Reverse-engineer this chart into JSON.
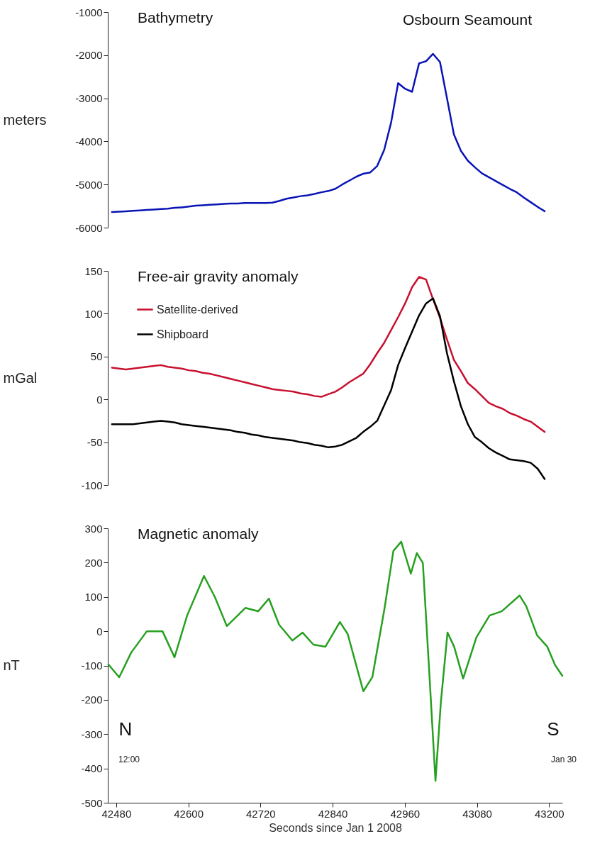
{
  "chart_data": [
    {
      "type": "line",
      "title": "Bathymetry",
      "ylabel": "meters",
      "annotations": [
        "Osbourn Seamount"
      ],
      "ylim": [
        -6000,
        -1000
      ],
      "yticks": [
        -6000,
        -5000,
        -4000,
        -3000,
        -2000,
        -1000
      ],
      "tick_labels": "y",
      "grid": false,
      "line_style": "solid",
      "categories": [
        null,
        null,
        null,
        null,
        null,
        null,
        null,
        null,
        null,
        null,
        null,
        null,
        null,
        null,
        null,
        null,
        null,
        null,
        null,
        null,
        null,
        null,
        null,
        null,
        null,
        null,
        null,
        null,
        null,
        null,
        null,
        null,
        null,
        null,
        null,
        null,
        null,
        null,
        null,
        null,
        null,
        null,
        null,
        null,
        null,
        null,
        null,
        null,
        null,
        null,
        null,
        null,
        null,
        null,
        null,
        null,
        null,
        null,
        null,
        null,
        null,
        null,
        null
      ],
      "series": [
        {
          "color": "#0a14b4",
          "values": [
            -5640,
            -5630,
            -5620,
            -5610,
            -5600,
            -5590,
            -5580,
            -5570,
            -5560,
            -5540,
            -5530,
            -5510,
            -5490,
            -5480,
            -5470,
            -5460,
            -5450,
            -5440,
            -5440,
            -5430,
            -5430,
            -5430,
            -5430,
            -5420,
            -5380,
            -5330,
            -5300,
            -5270,
            -5250,
            -5220,
            -5180,
            -5150,
            -5100,
            -5000,
            -4910,
            -4820,
            -4750,
            -4720,
            -4570,
            -4200,
            -3560,
            -2650,
            -2780,
            -2850,
            -2190,
            -2140,
            -1970,
            -2160,
            -3000,
            -3840,
            -4220,
            -4450,
            -4600,
            -4740,
            -4830,
            -4920,
            -5010,
            -5100,
            -5180,
            -5300,
            -5410,
            -5520,
            -5620
          ]
        }
      ]
    },
    {
      "type": "line",
      "title": "Free-air gravity anomaly",
      "ylabel": "mGal",
      "ylim": [
        -100,
        150
      ],
      "yticks": [
        -100,
        -50,
        0,
        50,
        100,
        150
      ],
      "tick_labels": "y",
      "grid": false,
      "legend": "top left",
      "line_style": "solid",
      "categories": [
        null,
        null,
        null,
        null,
        null,
        null,
        null,
        null,
        null,
        null,
        null,
        null,
        null,
        null,
        null,
        null,
        null,
        null,
        null,
        null,
        null,
        null,
        null,
        null,
        null,
        null,
        null,
        null,
        null,
        null,
        null,
        null,
        null,
        null,
        null,
        null,
        null,
        null,
        null,
        null,
        null,
        null,
        null,
        null,
        null,
        null,
        null,
        null,
        null,
        null,
        null,
        null,
        null,
        null,
        null,
        null,
        null,
        null,
        null,
        null,
        null,
        null,
        null
      ],
      "series": [
        {
          "name": "Satellite-derived",
          "color": "#c8102e",
          "values": [
            37,
            36,
            35,
            36,
            37,
            38,
            39,
            40,
            38,
            37,
            36,
            34,
            33,
            31,
            30,
            28,
            26,
            24,
            22,
            20,
            18,
            16,
            14,
            12,
            11,
            10,
            9,
            7,
            6,
            4,
            3,
            6,
            9,
            14,
            20,
            25,
            30,
            41,
            54,
            66,
            81,
            96,
            112,
            131,
            143,
            140,
            117,
            95,
            70,
            46,
            33,
            19,
            12,
            4,
            -4,
            -8,
            -11,
            -16,
            -19,
            -23,
            -26,
            -32,
            -38
          ]
        },
        {
          "name": "Shipboard",
          "color": "#000000",
          "values": [
            -29,
            -29,
            -29,
            -29,
            -28,
            -27,
            -26,
            -25,
            -26,
            -27,
            -29,
            -30,
            -31,
            -32,
            -33,
            -34,
            -35,
            -36,
            -38,
            -39,
            -41,
            -42,
            -44,
            -45,
            -46,
            -47,
            -48,
            -50,
            -51,
            -53,
            -54,
            -56,
            -55,
            -53,
            -49,
            -45,
            -38,
            -32,
            -25,
            -7,
            11,
            40,
            60,
            79,
            98,
            112,
            118,
            97,
            54,
            21,
            -8,
            -29,
            -44,
            -50,
            -57,
            -62,
            -66,
            -70,
            -71,
            -72,
            -74,
            -81,
            -93
          ]
        }
      ]
    },
    {
      "type": "line",
      "title": "Magnetic anomaly",
      "ylabel": "nT",
      "xlabel": "Seconds since Jan 1 2008",
      "annotations": [
        "N",
        "12:00",
        "S",
        "Jan 30"
      ],
      "xlim": [
        42466,
        43222
      ],
      "xticks": [
        42480,
        42600,
        42720,
        42840,
        42960,
        43080,
        43200
      ],
      "ylim": [
        -500,
        300
      ],
      "yticks": [
        -500,
        -400,
        -300,
        -200,
        -100,
        0,
        100,
        200,
        300
      ],
      "grid": false,
      "line_style": "solid",
      "x": [
        42467,
        42485,
        42505,
        42531,
        42557,
        42577,
        42598,
        42626,
        42644,
        42664,
        42695,
        42716,
        42734,
        42751,
        42773,
        42790,
        42808,
        42828,
        42852,
        42865,
        42891,
        42906,
        42926,
        42941,
        42954,
        42970,
        42980,
        42990,
        43000,
        43011,
        43020,
        43031,
        43042,
        43057,
        43079,
        43101,
        43121,
        43151,
        43162,
        43180,
        43197,
        43210,
        43222
      ],
      "series": [
        {
          "color": "#27a020",
          "values": [
            -97,
            -134,
            -62,
            0,
            0,
            -76,
            46,
            161,
            100,
            15,
            68,
            58,
            95,
            19,
            -27,
            -4,
            -39,
            -45,
            27,
            -8,
            -175,
            -134,
            64,
            234,
            261,
            168,
            228,
            199,
            -99,
            -436,
            -206,
            -4,
            -45,
            -138,
            -18,
            46,
            58,
            104,
            73,
            -12,
            -45,
            -99,
            -130
          ]
        }
      ]
    }
  ]
}
